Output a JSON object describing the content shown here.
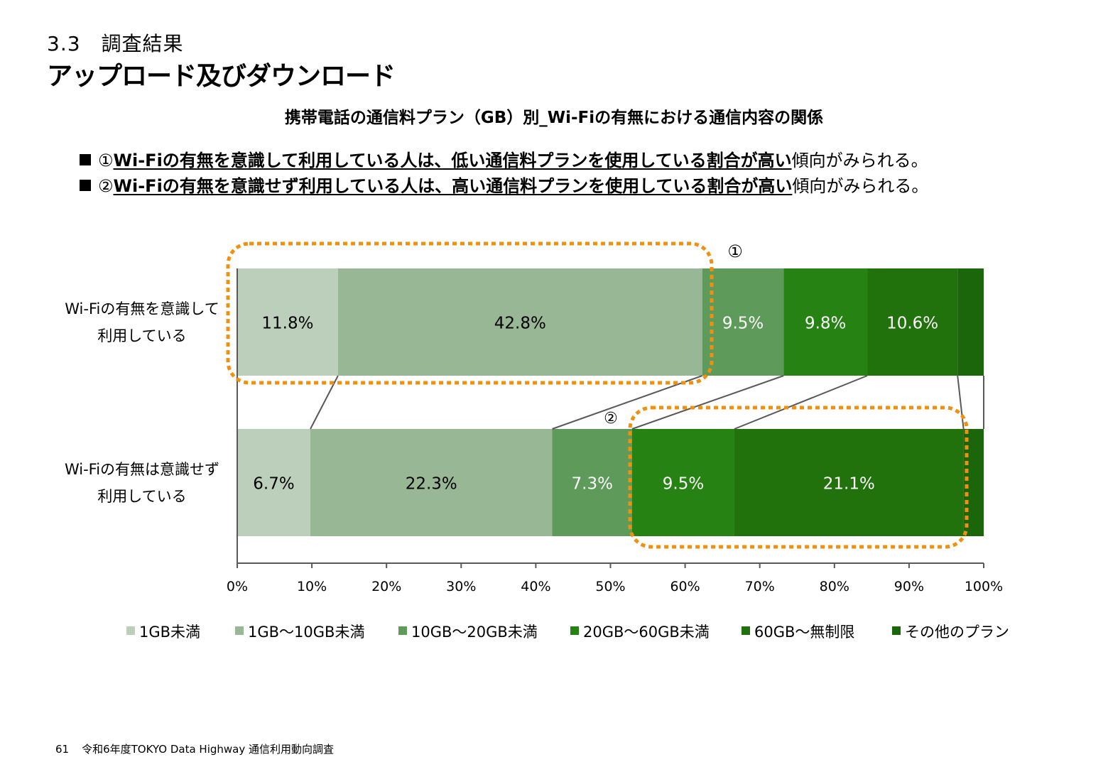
{
  "header": {
    "section_number": "3.3　調査結果",
    "page_title": "アップロード及びダウンロード"
  },
  "bullets": [
    {
      "marker": "■",
      "number": "①",
      "highlight": "Wi-Fiの有無を意識して利用している人は、低い通信料プランを使用している割合が高い",
      "tail": "傾向がみられる。"
    },
    {
      "marker": "■",
      "number": "②",
      "highlight": "Wi-Fiの有無を意識せず利用している人は、高い通信料プランを使用している割合が高い",
      "tail": "傾向がみられる。"
    }
  ],
  "chart_data": {
    "type": "bar",
    "orientation": "horizontal",
    "stacked": "percent",
    "title": "携帯電話の通信料プラン（GB）別_Wi-Fiの有無における通信内容の関係",
    "xlabel": "",
    "ylabel": "",
    "xlim": [
      0,
      100
    ],
    "x_ticks": [
      "0%",
      "10%",
      "20%",
      "30%",
      "40%",
      "50%",
      "60%",
      "70%",
      "80%",
      "90%",
      "100%"
    ],
    "grid": false,
    "legend_position": "bottom",
    "categories": [
      "Wi-Fiの有無を意識して\n利用している",
      "Wi-Fiの有無は意識せず\n利用している"
    ],
    "category_lines": [
      [
        "Wi-Fiの有無を意識して",
        "利用している"
      ],
      [
        "Wi-Fiの有無は意識せず",
        "利用している"
      ]
    ],
    "series": [
      {
        "name": "1GB未満",
        "color": "#bccfbb",
        "label_color": "#000000",
        "values": [
          13.5,
          9.8
        ],
        "labels": [
          "11.8%",
          "6.7%"
        ]
      },
      {
        "name": "1GB～10GB未満",
        "color": "#97b795",
        "label_color": "#000000",
        "values": [
          48.8,
          32.4
        ],
        "labels": [
          "42.8%",
          "22.3%"
        ]
      },
      {
        "name": "10GB～20GB未満",
        "color": "#5e9a5a",
        "label_color": "#ffffff",
        "values": [
          10.9,
          10.7
        ],
        "labels": [
          "9.5%",
          "7.3%"
        ]
      },
      {
        "name": "20GB～60GB未満",
        "color": "#268213",
        "label_color": "#ffffff",
        "values": [
          11.2,
          13.7
        ],
        "labels": [
          "9.8%",
          "9.5%"
        ]
      },
      {
        "name": "60GB～無制限",
        "color": "#21720c",
        "label_color": "#ffffff",
        "values": [
          12.1,
          30.7
        ],
        "labels": [
          "10.6%",
          "21.1%"
        ]
      },
      {
        "name": "その他のプラン",
        "color": "#1b650a",
        "label_color": "#ffffff",
        "values": [
          3.5,
          2.7
        ],
        "labels": [
          "",
          ""
        ]
      }
    ],
    "annotations": [
      {
        "label": "①",
        "highlights": "row 1 segments 1GB未満 + 1GB～10GB未満",
        "style": "orange dotted rounded box",
        "color": "#f0900e"
      },
      {
        "label": "②",
        "highlights": "row 2 segments 20GB～60GB未満 + 60GB～無制限",
        "style": "orange dotted rounded box",
        "color": "#f0900e"
      }
    ],
    "connector_lines": true,
    "colors": {
      "axis": "#595959",
      "connector": "#595959",
      "highlight": "#f0900e"
    }
  },
  "footer": {
    "page_number": "61",
    "source": "令和6年度TOKYO Data Highway 通信利用動向調査"
  }
}
